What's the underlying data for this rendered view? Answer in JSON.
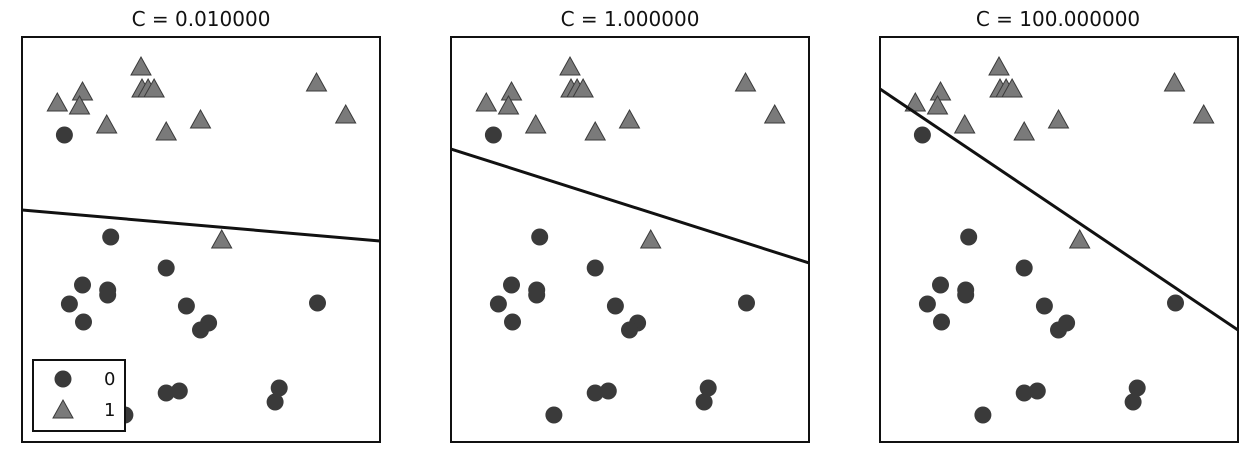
{
  "chart_data": [
    {
      "type": "scatter",
      "title": "C = 0.010000",
      "xlim": [
        0,
        355
      ],
      "ylim": [
        0,
        405
      ],
      "grid": false,
      "legend_placement": "bottom-left",
      "legend": [
        {
          "label": "0",
          "marker": "circle"
        },
        {
          "label": "1",
          "marker": "triangle"
        }
      ],
      "series": [
        {
          "name": "0",
          "marker": "circle",
          "color": "#3a3a3a",
          "points": [
            {
              "x": 42,
              "y": 307
            },
            {
              "x": 88,
              "y": 205
            },
            {
              "x": 60,
              "y": 157
            },
            {
              "x": 85,
              "y": 152
            },
            {
              "x": 47,
              "y": 138
            },
            {
              "x": 85,
              "y": 147
            },
            {
              "x": 61,
              "y": 120
            },
            {
              "x": 143,
              "y": 174
            },
            {
              "x": 163,
              "y": 136
            },
            {
              "x": 185,
              "y": 119
            },
            {
              "x": 177,
              "y": 112
            },
            {
              "x": 293,
              "y": 139
            },
            {
              "x": 143,
              "y": 49
            },
            {
              "x": 156,
              "y": 51
            },
            {
              "x": 255,
              "y": 54
            },
            {
              "x": 251,
              "y": 40
            },
            {
              "x": 102,
              "y": 27
            }
          ]
        },
        {
          "name": "1",
          "marker": "triangle",
          "color": "#7a7a7a",
          "points": [
            {
              "x": 118,
              "y": 375
            },
            {
              "x": 35,
              "y": 339
            },
            {
              "x": 60,
              "y": 350
            },
            {
              "x": 57,
              "y": 336
            },
            {
              "x": 84,
              "y": 317
            },
            {
              "x": 119,
              "y": 353
            },
            {
              "x": 125,
              "y": 353
            },
            {
              "x": 131,
              "y": 353
            },
            {
              "x": 143,
              "y": 310
            },
            {
              "x": 177,
              "y": 322
            },
            {
              "x": 292,
              "y": 359
            },
            {
              "x": 321,
              "y": 327
            },
            {
              "x": 198,
              "y": 202
            }
          ]
        }
      ],
      "decision_boundary": [
        {
          "x": 0,
          "y": 232
        },
        {
          "x": 355,
          "y": 201
        }
      ]
    },
    {
      "type": "scatter",
      "title": "C = 1.000000",
      "xlim": [
        0,
        355
      ],
      "ylim": [
        0,
        405
      ],
      "grid": false,
      "series": [
        {
          "name": "0",
          "marker": "circle",
          "color": "#3a3a3a",
          "points": [
            {
              "x": 42,
              "y": 307
            },
            {
              "x": 88,
              "y": 205
            },
            {
              "x": 60,
              "y": 157
            },
            {
              "x": 85,
              "y": 152
            },
            {
              "x": 47,
              "y": 138
            },
            {
              "x": 85,
              "y": 147
            },
            {
              "x": 61,
              "y": 120
            },
            {
              "x": 143,
              "y": 174
            },
            {
              "x": 163,
              "y": 136
            },
            {
              "x": 185,
              "y": 119
            },
            {
              "x": 177,
              "y": 112
            },
            {
              "x": 293,
              "y": 139
            },
            {
              "x": 143,
              "y": 49
            },
            {
              "x": 156,
              "y": 51
            },
            {
              "x": 255,
              "y": 54
            },
            {
              "x": 251,
              "y": 40
            },
            {
              "x": 102,
              "y": 27
            }
          ]
        },
        {
          "name": "1",
          "marker": "triangle",
          "color": "#7a7a7a",
          "points": [
            {
              "x": 118,
              "y": 375
            },
            {
              "x": 35,
              "y": 339
            },
            {
              "x": 60,
              "y": 350
            },
            {
              "x": 57,
              "y": 336
            },
            {
              "x": 84,
              "y": 317
            },
            {
              "x": 119,
              "y": 353
            },
            {
              "x": 125,
              "y": 353
            },
            {
              "x": 131,
              "y": 353
            },
            {
              "x": 143,
              "y": 310
            },
            {
              "x": 177,
              "y": 322
            },
            {
              "x": 292,
              "y": 359
            },
            {
              "x": 321,
              "y": 327
            },
            {
              "x": 198,
              "y": 202
            }
          ]
        }
      ],
      "decision_boundary": [
        {
          "x": 0,
          "y": 293
        },
        {
          "x": 355,
          "y": 179
        }
      ]
    },
    {
      "type": "scatter",
      "title": "C = 100.000000",
      "xlim": [
        0,
        355
      ],
      "ylim": [
        0,
        405
      ],
      "grid": false,
      "series": [
        {
          "name": "0",
          "marker": "circle",
          "color": "#3a3a3a",
          "points": [
            {
              "x": 42,
              "y": 307
            },
            {
              "x": 88,
              "y": 205
            },
            {
              "x": 60,
              "y": 157
            },
            {
              "x": 85,
              "y": 152
            },
            {
              "x": 47,
              "y": 138
            },
            {
              "x": 85,
              "y": 147
            },
            {
              "x": 61,
              "y": 120
            },
            {
              "x": 143,
              "y": 174
            },
            {
              "x": 163,
              "y": 136
            },
            {
              "x": 185,
              "y": 119
            },
            {
              "x": 177,
              "y": 112
            },
            {
              "x": 293,
              "y": 139
            },
            {
              "x": 143,
              "y": 49
            },
            {
              "x": 156,
              "y": 51
            },
            {
              "x": 255,
              "y": 54
            },
            {
              "x": 251,
              "y": 40
            },
            {
              "x": 102,
              "y": 27
            }
          ]
        },
        {
          "name": "1",
          "marker": "triangle",
          "color": "#7a7a7a",
          "points": [
            {
              "x": 118,
              "y": 375
            },
            {
              "x": 35,
              "y": 339
            },
            {
              "x": 60,
              "y": 350
            },
            {
              "x": 57,
              "y": 336
            },
            {
              "x": 84,
              "y": 317
            },
            {
              "x": 119,
              "y": 353
            },
            {
              "x": 125,
              "y": 353
            },
            {
              "x": 131,
              "y": 353
            },
            {
              "x": 143,
              "y": 310
            },
            {
              "x": 177,
              "y": 322
            },
            {
              "x": 292,
              "y": 359
            },
            {
              "x": 321,
              "y": 327
            },
            {
              "x": 198,
              "y": 202
            }
          ]
        }
      ],
      "decision_boundary": [
        {
          "x": 0,
          "y": 353
        },
        {
          "x": 355,
          "y": 112
        }
      ]
    }
  ],
  "colors": {
    "class0": "#3a3a3a",
    "class1": "#7a7a7a",
    "boundary": "#111111",
    "frame": "#111111",
    "background": "#ffffff"
  }
}
